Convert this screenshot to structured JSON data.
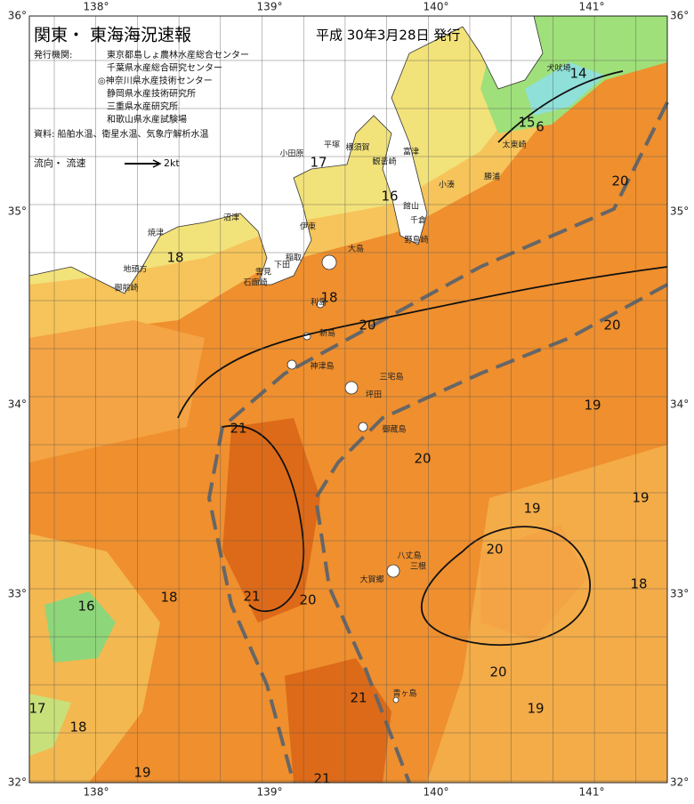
{
  "header": {
    "title": "関東・ 東海海況速報",
    "date": "平成 30年3月28日 発行"
  },
  "agencies": {
    "label": "発行機関:",
    "list": [
      "東京都島しょ農林水産総合センター",
      "千葉県水産総合研究センター",
      "◎神奈川県水産技術センター",
      "静岡県水産技術研究所",
      "三重県水産研究所",
      "和歌山県水産試験場"
    ]
  },
  "source": "資料: 船舶水温、衛星水温、気象庁解析水温",
  "legend": {
    "label": "流向・ 流速",
    "scale": "2kt"
  },
  "axes": {
    "lon": [
      "138°",
      "139°",
      "140°",
      "141°"
    ],
    "lat": [
      "36°",
      "35°",
      "34°",
      "33°",
      "32°"
    ]
  },
  "contour_labels": [
    "14",
    "15",
    "6",
    "17",
    "16",
    "20",
    "18",
    "18",
    "20",
    "20",
    "21",
    "19",
    "20",
    "19",
    "19",
    "20",
    "18",
    "16",
    "18",
    "21",
    "20",
    "21",
    "20",
    "19",
    "17",
    "18",
    "19",
    "21"
  ],
  "places": [
    "犬吠埼",
    "太東崎",
    "勝浦",
    "小湊",
    "館山",
    "千倉",
    "野島崎",
    "富津",
    "観音崎",
    "横須賀",
    "平塚",
    "小田原",
    "伊東",
    "稲取",
    "下田",
    "大島",
    "雲見",
    "石廊崎",
    "沼津",
    "焼津",
    "地頭方",
    "御前崎",
    "利島",
    "新島",
    "神津島",
    "三宅島",
    "坪田",
    "御蔵島",
    "八丈島",
    "大賀郷",
    "三根",
    "青ヶ島"
  ]
}
